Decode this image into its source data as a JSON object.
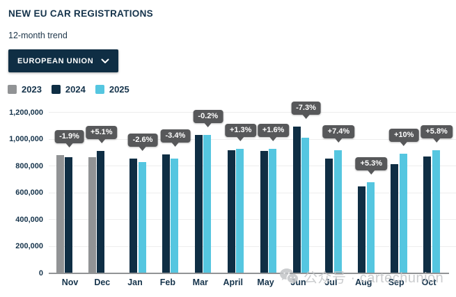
{
  "header": {
    "title": "NEW EU CAR REGISTRATIONS",
    "subtitle": "12-month trend"
  },
  "filter": {
    "label": "EUROPEAN UNION",
    "icon": "chevron-down-icon"
  },
  "watermark": {
    "icon": "wechat-icon",
    "text": "公众号 · cartechunion"
  },
  "colors": {
    "series_2023": "#919395",
    "series_2024": "#0f2e44",
    "series_2025": "#55c6e0",
    "tooltip_bg": "#57585a",
    "gridline": "#ededed",
    "axis": "#919395",
    "text": "#15334b",
    "dropdown_bg": "#0f2e44"
  },
  "chart_data": {
    "type": "bar",
    "title": "NEW EU CAR REGISTRATIONS",
    "subtitle": "12-month trend",
    "xlabel": "",
    "ylabel": "",
    "ylim": [
      0,
      1200000
    ],
    "ytick_step": 200000,
    "ytick_labels": [
      "0",
      "200,000",
      "400,000",
      "600,000",
      "800,000",
      "1,000,000",
      "1,200,000"
    ],
    "grid": true,
    "legend_position": "top-left",
    "legend": [
      {
        "label": "2023",
        "color": "#919395"
      },
      {
        "label": "2024",
        "color": "#0f2e44"
      },
      {
        "label": "2025",
        "color": "#55c6e0"
      }
    ],
    "categories": [
      "Nov",
      "Dec",
      "Jan",
      "Feb",
      "Mar",
      "April",
      "May",
      "Jun",
      "Jul",
      "Aug",
      "Sep",
      "Oct"
    ],
    "months": [
      {
        "month": "Nov",
        "bars": [
          {
            "year": "2023",
            "value": 880000
          },
          {
            "year": "2024",
            "value": 863000
          }
        ],
        "change": "-1.9%"
      },
      {
        "month": "Dec",
        "bars": [
          {
            "year": "2023",
            "value": 864000
          },
          {
            "year": "2024",
            "value": 908000
          }
        ],
        "change": "+5.1%"
      },
      {
        "month": "Jan",
        "bars": [
          {
            "year": "2024",
            "value": 850000
          },
          {
            "year": "2025",
            "value": 828000
          }
        ],
        "change": "-2.6%"
      },
      {
        "month": "Feb",
        "bars": [
          {
            "year": "2024",
            "value": 882000
          },
          {
            "year": "2025",
            "value": 852000
          }
        ],
        "change": "-3.4%"
      },
      {
        "month": "Mar",
        "bars": [
          {
            "year": "2024",
            "value": 1030000
          },
          {
            "year": "2025",
            "value": 1028000
          }
        ],
        "change": "-0.2%"
      },
      {
        "month": "April",
        "bars": [
          {
            "year": "2024",
            "value": 912000
          },
          {
            "year": "2025",
            "value": 924000
          }
        ],
        "change": "+1.3%"
      },
      {
        "month": "May",
        "bars": [
          {
            "year": "2024",
            "value": 911000
          },
          {
            "year": "2025",
            "value": 926000
          }
        ],
        "change": "+1.6%"
      },
      {
        "month": "Jun",
        "bars": [
          {
            "year": "2024",
            "value": 1090000
          },
          {
            "year": "2025",
            "value": 1010000
          }
        ],
        "change": "-7.3%"
      },
      {
        "month": "Jul",
        "bars": [
          {
            "year": "2024",
            "value": 852000
          },
          {
            "year": "2025",
            "value": 915000
          }
        ],
        "change": "+7.4%"
      },
      {
        "month": "Aug",
        "bars": [
          {
            "year": "2024",
            "value": 643000
          },
          {
            "year": "2025",
            "value": 677000
          }
        ],
        "change": "+5.3%"
      },
      {
        "month": "Sep",
        "bars": [
          {
            "year": "2024",
            "value": 808000
          },
          {
            "year": "2025",
            "value": 889000
          }
        ],
        "change": "+10%"
      },
      {
        "month": "Oct",
        "bars": [
          {
            "year": "2024",
            "value": 866000
          },
          {
            "year": "2025",
            "value": 916000
          }
        ],
        "change": "+5.8%"
      }
    ]
  }
}
